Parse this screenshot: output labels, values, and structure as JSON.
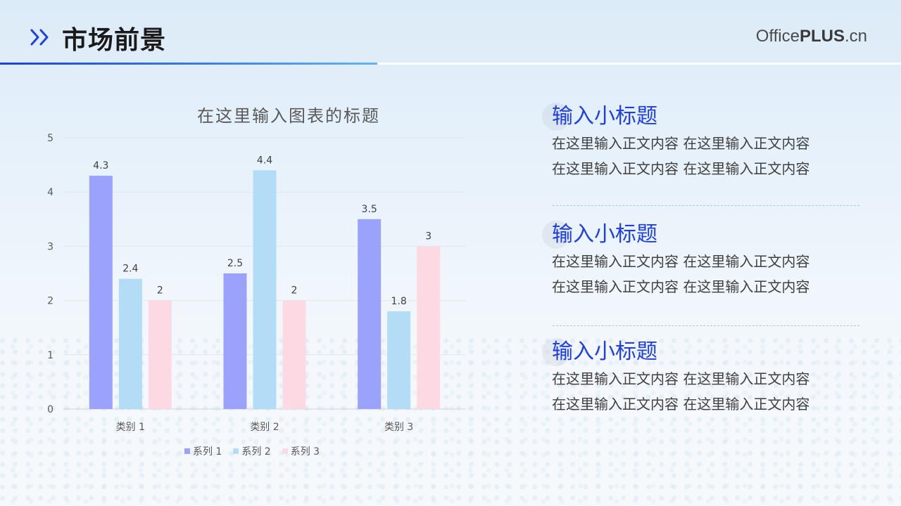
{
  "header": {
    "title": "市场前景",
    "brand_light": "Office",
    "brand_bold": "PLUS",
    "brand_suffix": ".cn"
  },
  "colors": {
    "accent": "#1f3fe0",
    "series_1": "#9aa2fb",
    "series_2": "#b3dcf6",
    "series_3": "#fddae3"
  },
  "sections": [
    {
      "title": "输入小标题",
      "line1": "在这里输入正文内容 在这里输入正文内容",
      "line2": "在这里输入正文内容 在这里输入正文内容"
    },
    {
      "title": "输入小标题",
      "line1": "在这里输入正文内容 在这里输入正文内容",
      "line2": "在这里输入正文内容 在这里输入正文内容"
    },
    {
      "title": "输入小标题",
      "line1": "在这里输入正文内容 在这里输入正文内容",
      "line2": "在这里输入正文内容 在这里输入正文内容"
    }
  ],
  "chart_data": {
    "type": "bar",
    "title": "在这里输入图表的标题",
    "categories": [
      "类别 1",
      "类别 2",
      "类别 3"
    ],
    "series": [
      {
        "name": "系列 1",
        "values": [
          4.3,
          2.5,
          3.5
        ]
      },
      {
        "name": "系列 2",
        "values": [
          2.4,
          4.4,
          1.8
        ]
      },
      {
        "name": "系列 3",
        "values": [
          2,
          2,
          3
        ]
      }
    ],
    "ylim": [
      0,
      5
    ],
    "yticks": [
      0,
      1,
      2,
      3,
      4,
      5
    ],
    "grid": true,
    "legend": "bottom",
    "data_labels": true
  }
}
